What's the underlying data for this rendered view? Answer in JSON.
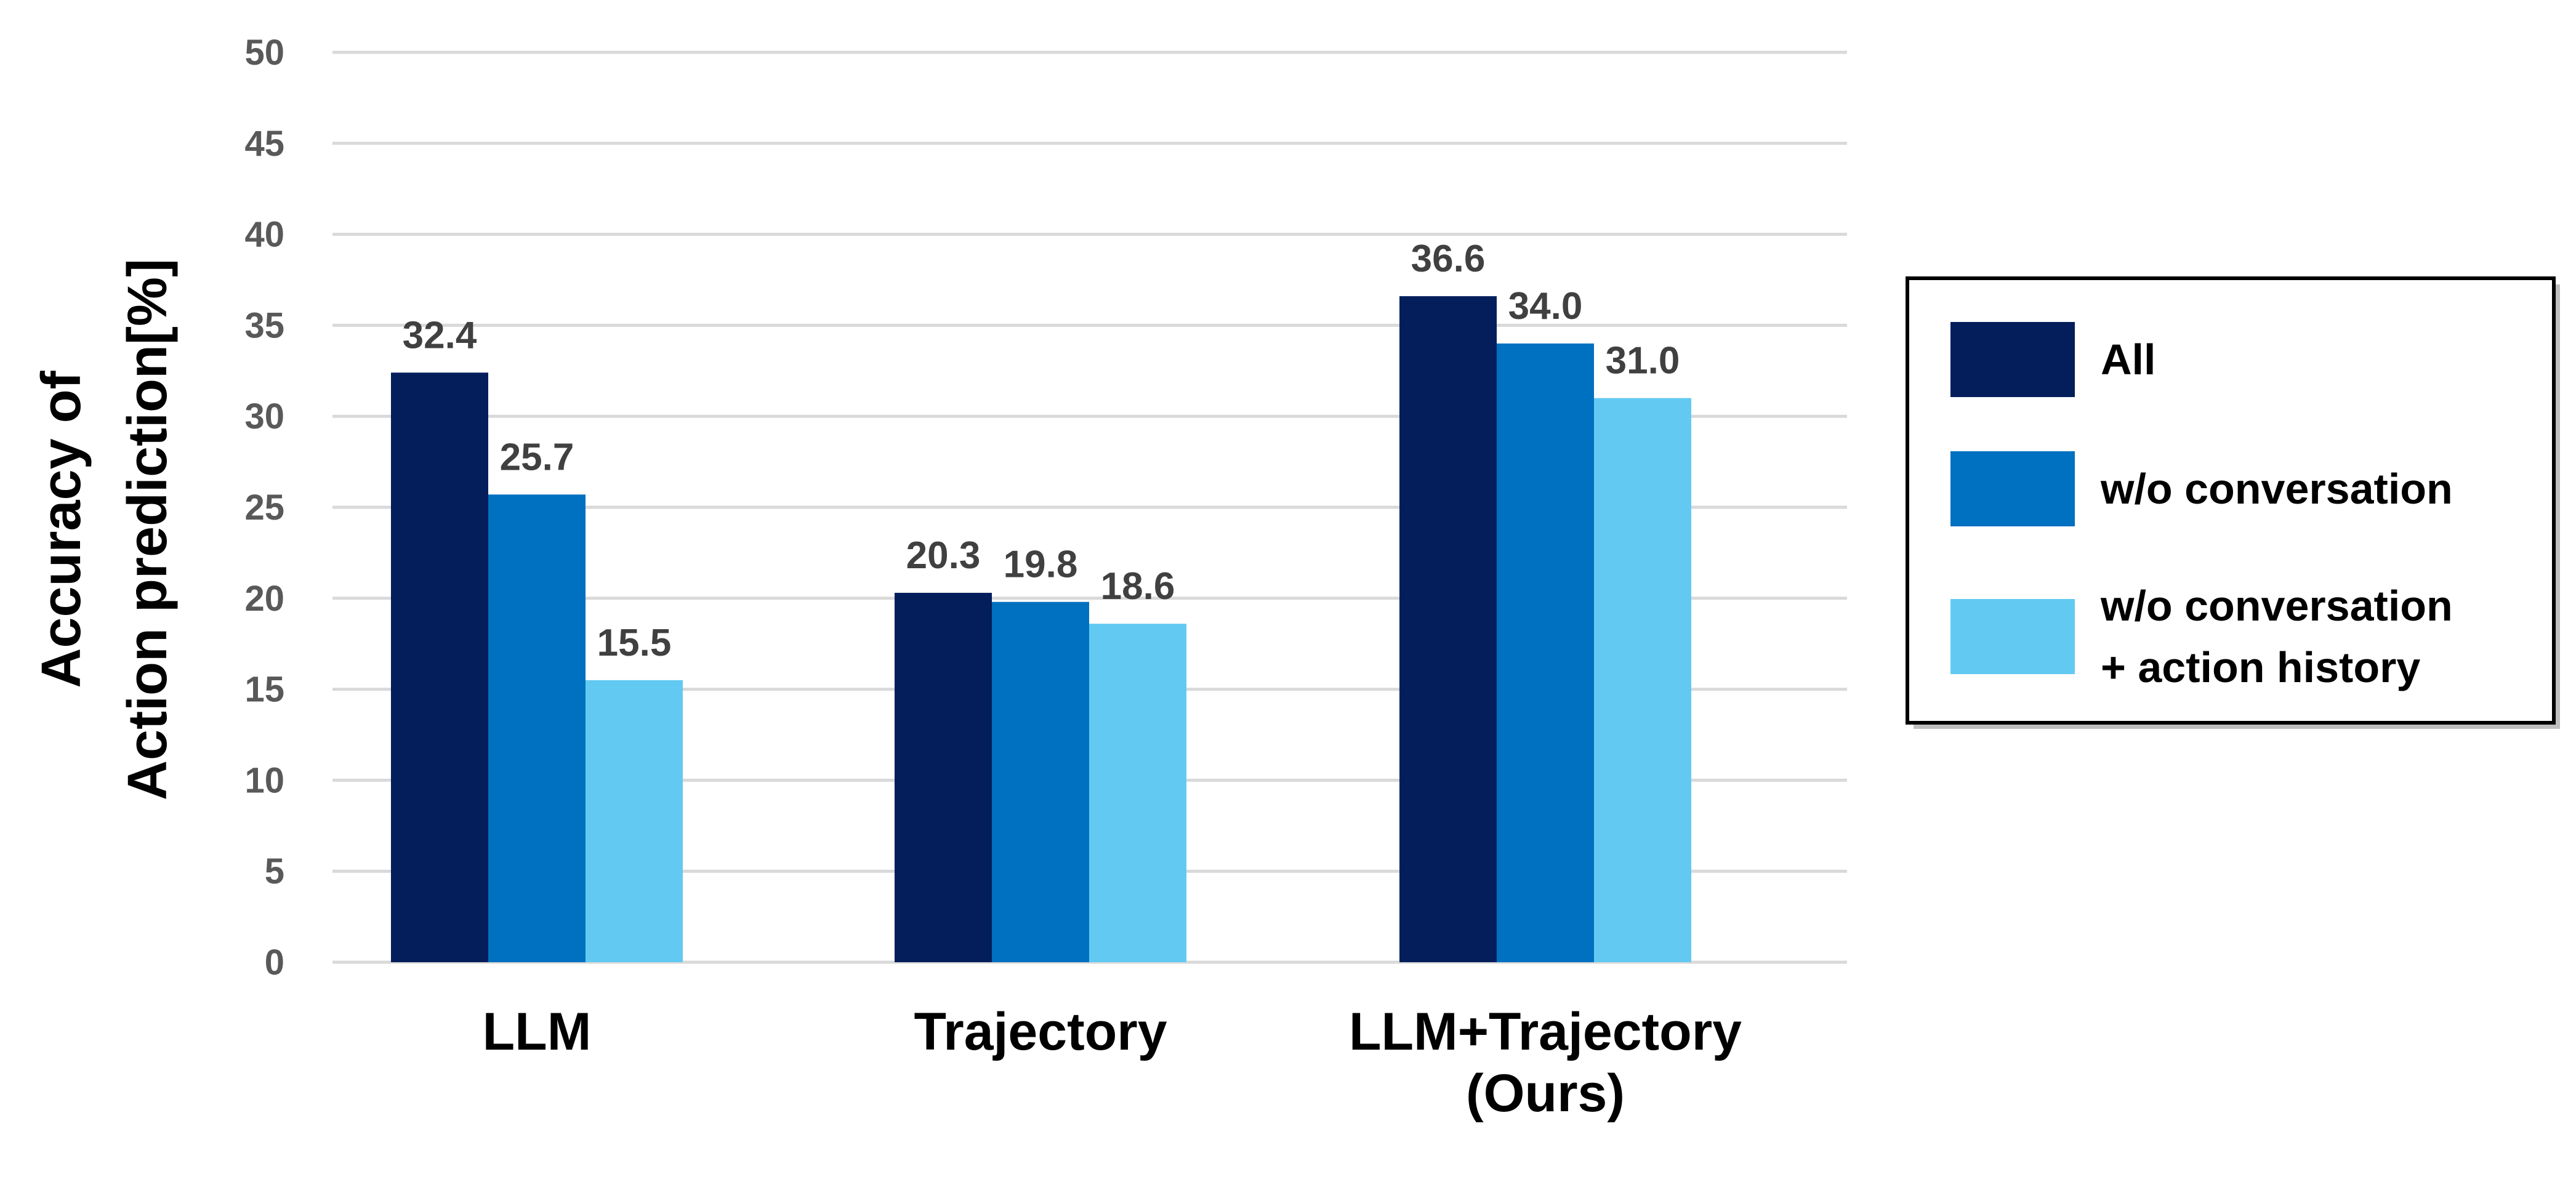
{
  "chart_data": {
    "type": "bar",
    "title": "",
    "xlabel": "",
    "ylabel_lines": [
      "Accuracy of",
      "Action prediction[%]"
    ],
    "ylim": [
      0,
      50
    ],
    "yticks": [
      0,
      5,
      10,
      15,
      20,
      25,
      30,
      35,
      40,
      45,
      50
    ],
    "grid": true,
    "categories": [
      [
        "LLM"
      ],
      [
        "Trajectory"
      ],
      [
        "LLM+Trajectory",
        "(Ours)"
      ]
    ],
    "series": [
      {
        "name": "All",
        "color": "#041E5C",
        "values": [
          32.4,
          20.3,
          36.6
        ],
        "labels": [
          "32.4",
          "20.3",
          "36.6"
        ]
      },
      {
        "name": "w/o conversation",
        "color": "#0070C0",
        "values": [
          25.7,
          19.8,
          34.0
        ],
        "labels": [
          "25.7",
          "19.8",
          "34.0"
        ]
      },
      {
        "name": "w/o conversation + action history",
        "legend_lines": [
          "w/o conversation",
          "+ action history"
        ],
        "color": "#62CAF2",
        "values": [
          15.5,
          18.6,
          31.0
        ],
        "labels": [
          "15.5",
          "18.6",
          "31.0"
        ]
      }
    ],
    "legend_position": "right"
  }
}
